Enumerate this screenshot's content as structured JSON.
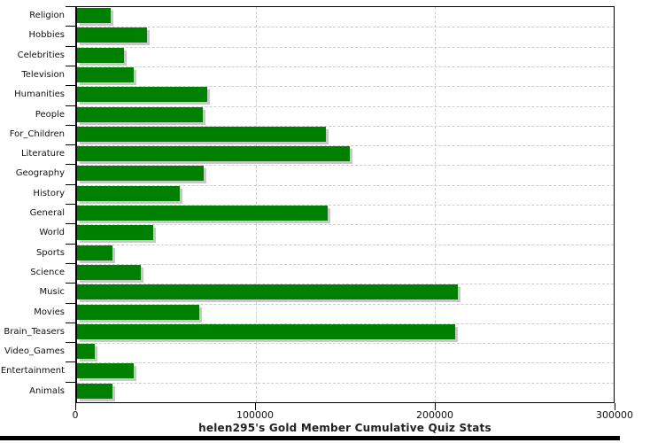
{
  "title": "helen295's Gold Member Cumulative Quiz Stats",
  "chart_data": {
    "type": "bar",
    "orientation": "horizontal",
    "title": "helen295's Gold Member Cumulative Quiz Stats",
    "xlabel": "",
    "ylabel": "",
    "categories": [
      "Religion",
      "Hobbies",
      "Celebrities",
      "Television",
      "Humanities",
      "People",
      "For_Children",
      "Literature",
      "Geography",
      "History",
      "General",
      "World",
      "Sports",
      "Science",
      "Music",
      "Movies",
      "Brain_Teasers",
      "Video_Games",
      "Entertainment",
      "Animals"
    ],
    "values": [
      19000,
      39000,
      26000,
      31500,
      73000,
      70500,
      139000,
      152500,
      71000,
      57500,
      140000,
      42500,
      20000,
      35500,
      213000,
      68500,
      211500,
      10000,
      31500,
      20000
    ],
    "xlim": [
      0,
      300000
    ],
    "x_ticks": [
      0,
      100000,
      200000,
      300000
    ],
    "x_tick_labels": [
      "0",
      "100000",
      "200000",
      "300000"
    ],
    "grid": "dashed, horizontal at category boundaries and vertical at x ticks",
    "legend": "none",
    "colors": {
      "bar": "#008000",
      "bar_shadow": "#c8c8c8",
      "grid": "#cccccc",
      "axis": "#000000",
      "tick_text": "#111111",
      "title_text": "#222222",
      "background": "#ffffff",
      "bottom_strip": "#000000"
    }
  }
}
